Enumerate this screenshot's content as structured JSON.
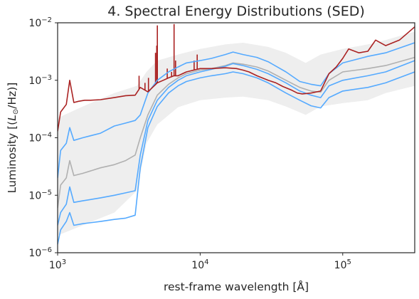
{
  "chart_data": {
    "type": "line",
    "title": "4. Spectral Energy Distributions (SED)",
    "xlabel": "rest-frame wavelength [Å]",
    "ylabel_prefix": "Luminosity [(",
    "ylabel_units": "L",
    "ylabel_sub": "⊙",
    "ylabel_suffix": "/Hz)]",
    "x_scale": "log",
    "y_scale": "log",
    "xlim": [
      1000,
      320000
    ],
    "ylim": [
      1e-06,
      0.01
    ],
    "x_ticks": [
      {
        "value": 1000,
        "base": "10",
        "exp": "3"
      },
      {
        "value": 10000,
        "base": "10",
        "exp": "4"
      },
      {
        "value": 100000,
        "base": "10",
        "exp": "5"
      }
    ],
    "y_ticks": [
      {
        "value": 1e-06,
        "base": "10",
        "exp": "−6"
      },
      {
        "value": 1e-05,
        "base": "10",
        "exp": "−5"
      },
      {
        "value": 0.0001,
        "base": "10",
        "exp": "−4"
      },
      {
        "value": 0.001,
        "base": "10",
        "exp": "−3"
      },
      {
        "value": 0.01,
        "base": "10",
        "exp": "−2"
      }
    ],
    "grid": false,
    "colors": {
      "red": "#aa2222",
      "blue": "#55aaff",
      "gray": "#b0b0b0",
      "band": "#eeeeee",
      "frame": "#262626"
    },
    "band": {
      "x": [
        1000,
        1500,
        2500,
        3600,
        4200,
        5000,
        7000,
        10000,
        15000,
        20000,
        30000,
        40000,
        55000,
        70000,
        100000,
        150000,
        200000,
        320000
      ],
      "upper": [
        0.00022,
        0.00035,
        0.0006,
        0.0008,
        0.0014,
        0.0022,
        0.0028,
        0.0035,
        0.0042,
        0.0045,
        0.0038,
        0.003,
        0.002,
        0.0028,
        0.0035,
        0.0042,
        0.005,
        0.007
      ],
      "lower": [
        2e-06,
        3e-06,
        5e-06,
        1.2e-05,
        8e-05,
        0.00017,
        0.00034,
        0.00045,
        0.0005,
        0.00052,
        0.00045,
        0.00035,
        0.00025,
        0.00035,
        0.0004,
        0.00045,
        0.0006,
        0.0008
      ]
    },
    "series": [
      {
        "color": "red",
        "x": [
          1000,
          1050,
          1150,
          1216,
          1300,
          1400,
          1550,
          1700,
          2000,
          2500,
          3000,
          3500,
          3800,
          4300,
          5000,
          5500,
          6000,
          6563,
          7000,
          8000,
          10000,
          12000,
          15000,
          18000,
          20000,
          22000,
          25000,
          30000,
          34000,
          38000,
          44000,
          48000,
          52000,
          60000,
          70000,
          80000,
          90000,
          100000,
          110000,
          130000,
          150000,
          170000,
          200000,
          250000,
          320000
        ],
        "y": [
          0.00013,
          0.00028,
          0.00038,
          0.001,
          0.00041,
          0.00043,
          0.00045,
          0.00045,
          0.00046,
          0.0005,
          0.00054,
          0.00055,
          0.00075,
          0.00063,
          0.0009,
          0.001,
          0.0011,
          0.0012,
          0.0012,
          0.0014,
          0.0016,
          0.0016,
          0.00165,
          0.0016,
          0.0015,
          0.0014,
          0.0012,
          0.001,
          0.0009,
          0.00078,
          0.00067,
          0.0006,
          0.00058,
          0.0006,
          0.00065,
          0.0013,
          0.0017,
          0.0024,
          0.0035,
          0.003,
          0.0032,
          0.005,
          0.004,
          0.005,
          0.0085
        ]
      },
      {
        "color": "blue",
        "x": [
          1000,
          1050,
          1150,
          1216,
          1300,
          1500,
          2000,
          2500,
          3000,
          3500,
          3800,
          4300,
          5000,
          6000,
          7000,
          8000,
          10000,
          12000,
          15000,
          17000,
          20000,
          25000,
          30000,
          40000,
          50000,
          60000,
          70000,
          80000,
          100000,
          150000,
          200000,
          320000
        ],
        "y": [
          2e-05,
          6e-05,
          8e-05,
          0.00015,
          9e-05,
          0.0001,
          0.00012,
          0.00016,
          0.00018,
          0.0002,
          0.00025,
          0.0006,
          0.001,
          0.0014,
          0.0017,
          0.002,
          0.0022,
          0.0024,
          0.0028,
          0.0031,
          0.0028,
          0.0025,
          0.0021,
          0.0014,
          0.00095,
          0.00085,
          0.0008,
          0.0013,
          0.002,
          0.0026,
          0.003,
          0.0045
        ]
      },
      {
        "color": "gray",
        "x": [
          1000,
          1050,
          1150,
          1216,
          1300,
          1500,
          2000,
          2500,
          3000,
          3500,
          3800,
          4300,
          5000,
          6000,
          7000,
          8000,
          10000,
          12000,
          15000,
          17000,
          20000,
          25000,
          30000,
          40000,
          50000,
          60000,
          70000,
          80000,
          100000,
          150000,
          200000,
          320000
        ],
        "y": [
          6e-06,
          1.5e-05,
          2e-05,
          4e-05,
          2.2e-05,
          2.4e-05,
          3e-05,
          3.4e-05,
          4e-05,
          5e-05,
          0.0001,
          0.00025,
          0.00055,
          0.00085,
          0.0011,
          0.0013,
          0.0015,
          0.0016,
          0.0018,
          0.002,
          0.0019,
          0.0017,
          0.00145,
          0.001,
          0.00075,
          0.00065,
          0.00062,
          0.001,
          0.0014,
          0.0016,
          0.0018,
          0.0025
        ]
      },
      {
        "color": "blue",
        "x": [
          1000,
          1050,
          1150,
          1216,
          1300,
          1500,
          2000,
          2500,
          3000,
          3500,
          3800,
          4300,
          5000,
          6000,
          7000,
          8000,
          10000,
          12000,
          15000,
          17000,
          20000,
          25000,
          30000,
          40000,
          50000,
          60000,
          70000,
          80000,
          100000,
          150000,
          200000,
          320000
        ],
        "y": [
          3e-06,
          5e-06,
          7e-06,
          1.4e-05,
          7.5e-06,
          8e-06,
          9e-06,
          1e-05,
          1.1e-05,
          1.2e-05,
          5e-05,
          0.0002,
          0.00045,
          0.00075,
          0.001,
          0.0012,
          0.0014,
          0.00155,
          0.00175,
          0.00195,
          0.0018,
          0.00155,
          0.0013,
          0.0009,
          0.00065,
          0.00055,
          0.0005,
          0.0008,
          0.001,
          0.0012,
          0.0014,
          0.0022
        ]
      },
      {
        "color": "blue",
        "x": [
          1000,
          1050,
          1150,
          1216,
          1300,
          1500,
          2000,
          2500,
          3000,
          3500,
          3800,
          4300,
          5000,
          6000,
          7000,
          8000,
          10000,
          12000,
          15000,
          17000,
          20000,
          25000,
          30000,
          40000,
          50000,
          60000,
          70000,
          80000,
          100000,
          150000,
          200000,
          320000
        ],
        "y": [
          1.4e-06,
          2.5e-06,
          3.5e-06,
          5e-06,
          3e-06,
          3.2e-06,
          3.5e-06,
          3.8e-06,
          4e-06,
          4.5e-06,
          3e-05,
          0.00015,
          0.00035,
          0.0006,
          0.0008,
          0.00095,
          0.0011,
          0.0012,
          0.0013,
          0.0014,
          0.0013,
          0.0011,
          0.0009,
          0.0006,
          0.00045,
          0.00036,
          0.00033,
          0.0005,
          0.00065,
          0.00075,
          0.0009,
          0.0014
        ]
      }
    ],
    "emission_spikes": {
      "color": "red",
      "x": [
        3727,
        4102,
        4340,
        4861,
        4959,
        5007,
        5876,
        6300,
        6563,
        6717,
        9069,
        9532
      ],
      "y_top": [
        0.0012,
        0.0009,
        0.0011,
        0.003,
        0.004,
        0.009,
        0.0016,
        0.0014,
        0.0095,
        0.0022,
        0.0022,
        0.0028
      ]
    }
  }
}
